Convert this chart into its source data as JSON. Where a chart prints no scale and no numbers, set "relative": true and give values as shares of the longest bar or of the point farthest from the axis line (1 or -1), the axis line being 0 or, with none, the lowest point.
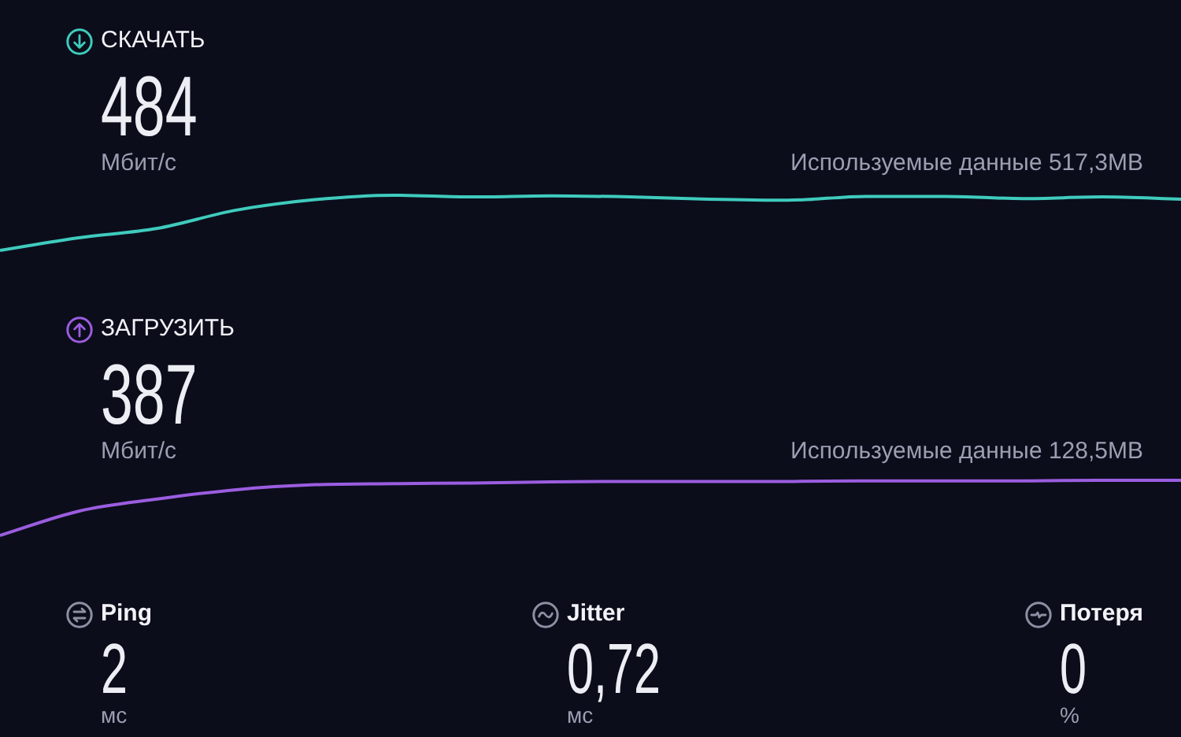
{
  "chart_data": [
    {
      "type": "line",
      "title": "СКАЧАТЬ",
      "annotations": [
        "484",
        "Мбит/с",
        "Используемые данные 517,3MB"
      ],
      "relative": true,
      "categories": [
        null,
        null,
        null,
        null,
        null,
        null,
        null,
        null,
        null,
        null,
        null,
        null,
        null,
        null,
        null,
        null
      ],
      "values": [
        0,
        0.23,
        0.4,
        0.73,
        0.92,
        1,
        0.97,
        0.99,
        0.97,
        0.93,
        0.91,
        0.98,
        0.98,
        0.94,
        0.97,
        0.93
      ],
      "color": "#3fcbbd"
    },
    {
      "type": "line",
      "title": "ЗАГРУЗИТЬ",
      "annotations": [
        "387",
        "Мбит/с",
        "Используемые данные 128,5MB"
      ],
      "relative": true,
      "categories": [
        null,
        null,
        null,
        null,
        null,
        null,
        null,
        null,
        null,
        null,
        null,
        null,
        null,
        null,
        null,
        null
      ],
      "values": [
        0,
        0.44,
        0.66,
        0.83,
        0.92,
        0.94,
        0.95,
        0.97,
        0.98,
        0.98,
        0.98,
        0.99,
        0.99,
        0.99,
        1,
        1
      ],
      "color": "#9b5ddf"
    },
    {
      "type": "other",
      "title": "Ping",
      "annotations": [
        "2",
        "мс"
      ]
    },
    {
      "type": "other",
      "title": "Jitter",
      "annotations": [
        "0,72",
        "мс"
      ]
    },
    {
      "type": "other",
      "title": "Потеря",
      "annotations": [
        "0",
        "%"
      ]
    }
  ]
}
